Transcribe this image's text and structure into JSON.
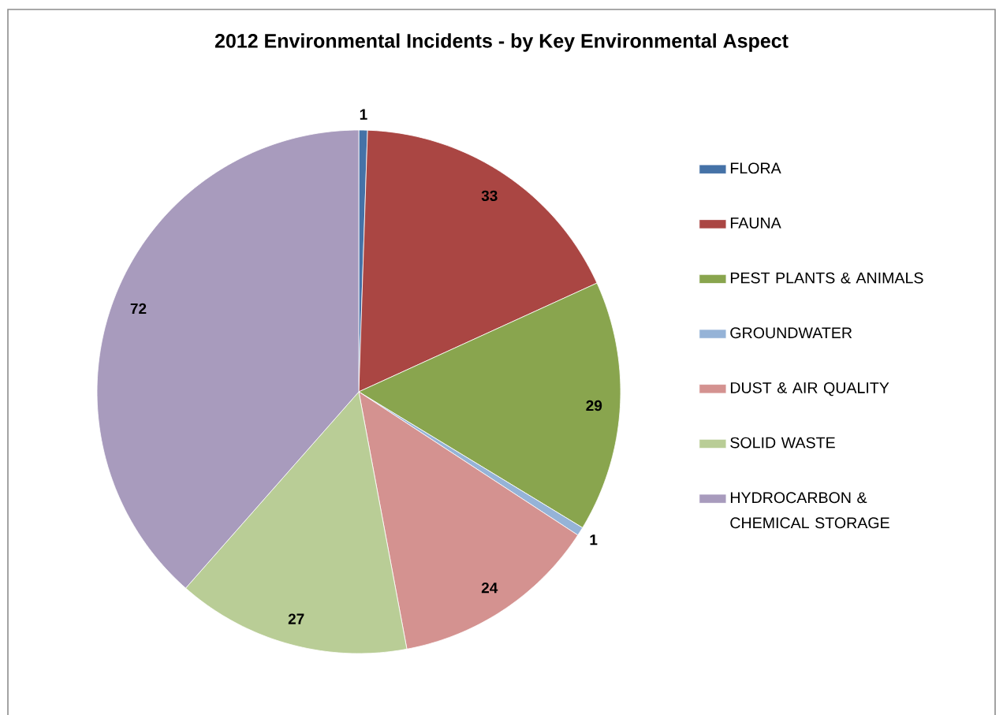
{
  "chart_data": {
    "type": "pie",
    "title": "2012 Environmental Incidents - by Key Environmental Aspect",
    "categories": [
      "FLORA",
      "FAUNA",
      "PEST PLANTS & ANIMALS",
      "GROUNDWATER",
      "DUST & AIR QUALITY",
      "SOLID WASTE",
      "HYDROCARBON & CHEMICAL STORAGE"
    ],
    "values": [
      1,
      33,
      29,
      1,
      24,
      27,
      72
    ],
    "colors": [
      "#4572a7",
      "#aa4643",
      "#89a54e",
      "#95b3d7",
      "#d49290",
      "#b9cd96",
      "#a89bbd"
    ],
    "data_labels": true,
    "legend": "right"
  }
}
